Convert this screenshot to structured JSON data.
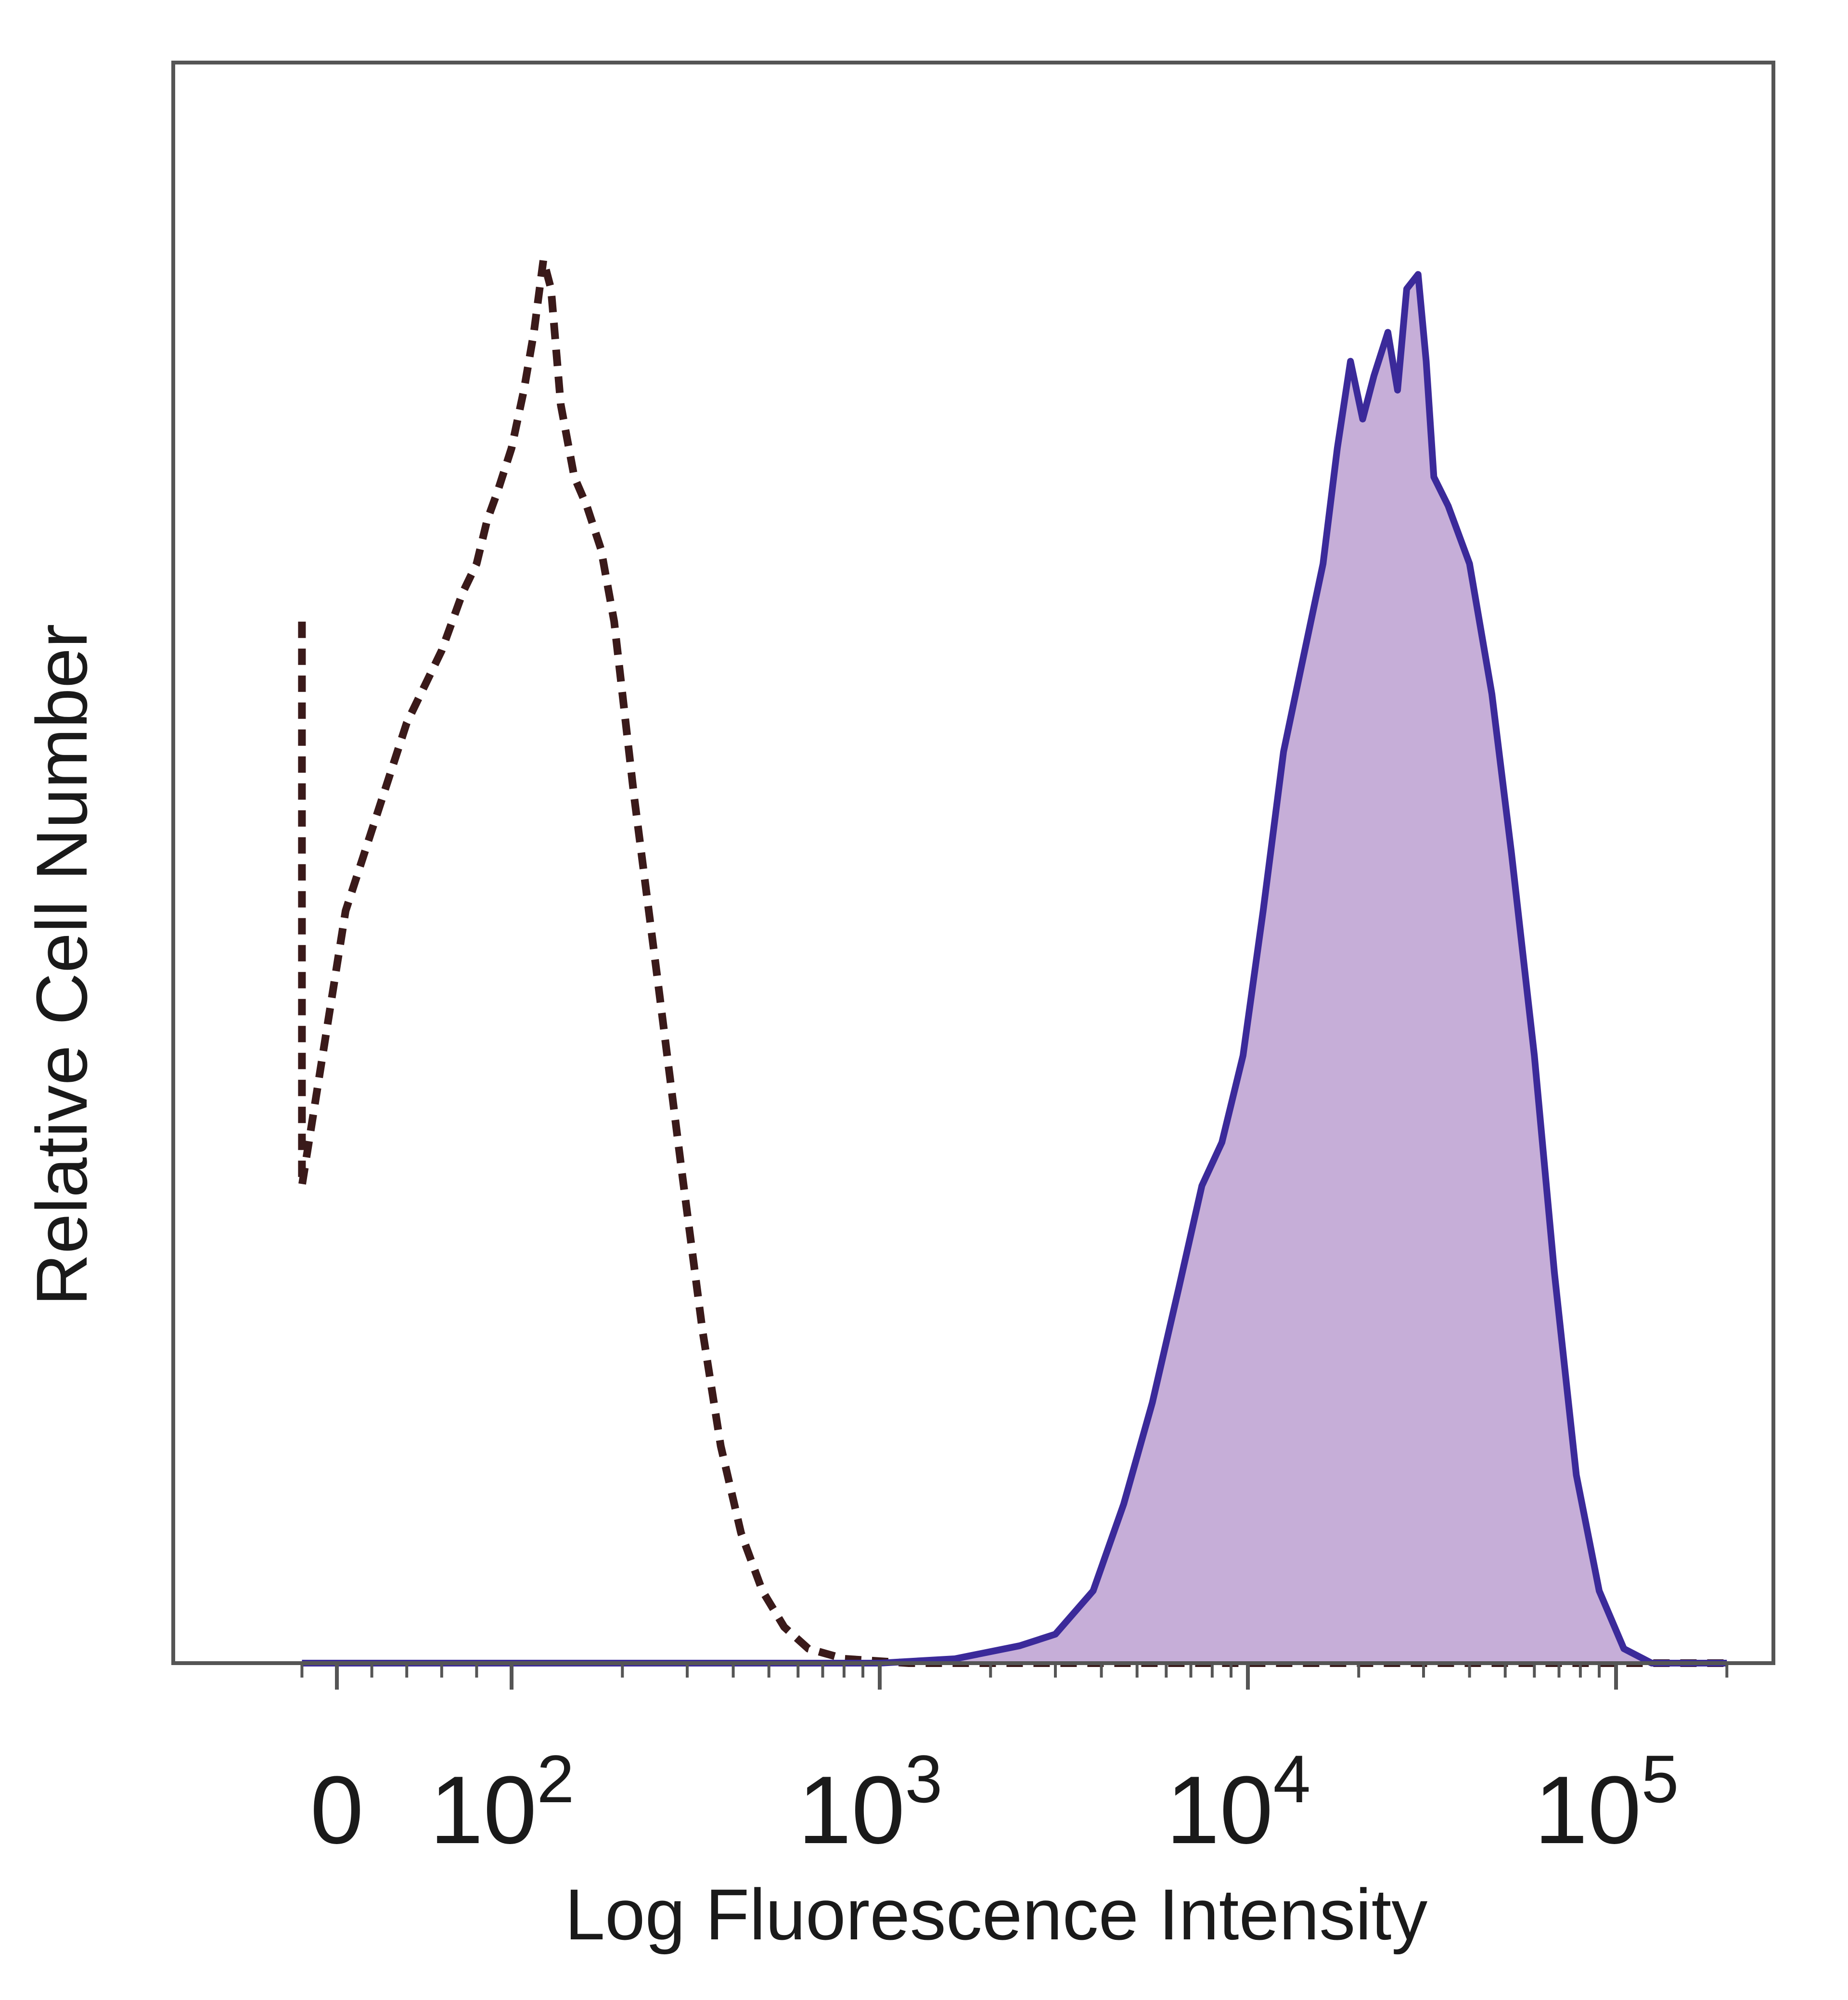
{
  "chart_data": {
    "type": "area",
    "xlabel": "Log Fluorescence Intensity",
    "ylabel": "Relative Cell Number",
    "x_scale": "biexponential",
    "x_ticks": [
      {
        "value": 0,
        "label": "0"
      },
      {
        "value": 100,
        "base": "10",
        "exp": "2"
      },
      {
        "value": 1000,
        "base": "10",
        "exp": "3"
      },
      {
        "value": 10000,
        "base": "10",
        "exp": "4"
      },
      {
        "value": 100000,
        "base": "10",
        "exp": "5"
      }
    ],
    "grid": false,
    "legend": "none",
    "series": [
      {
        "style": "dashed-outline",
        "color": "#3a1a1a",
        "points": [
          [
            -30,
            0.72
          ],
          [
            -28,
            0.5
          ],
          [
            -20,
            0.33
          ],
          [
            5,
            0.52
          ],
          [
            40,
            0.65
          ],
          [
            60,
            0.7
          ],
          [
            72,
            0.74
          ],
          [
            80,
            0.76
          ],
          [
            86,
            0.79
          ],
          [
            92,
            0.81
          ],
          [
            100,
            0.84
          ],
          [
            108,
            0.88
          ],
          [
            115,
            0.92
          ],
          [
            122,
            0.97
          ],
          [
            128,
            0.95
          ],
          [
            136,
            0.87
          ],
          [
            148,
            0.82
          ],
          [
            160,
            0.8
          ],
          [
            175,
            0.77
          ],
          [
            190,
            0.72
          ],
          [
            215,
            0.6
          ],
          [
            250,
            0.47
          ],
          [
            290,
            0.34
          ],
          [
            330,
            0.23
          ],
          [
            370,
            0.15
          ],
          [
            420,
            0.09
          ],
          [
            480,
            0.05
          ],
          [
            550,
            0.025
          ],
          [
            640,
            0.01
          ],
          [
            800,
            0.003
          ],
          [
            1200,
            0.0
          ],
          [
            200000,
            0.0
          ]
        ]
      },
      {
        "style": "filled",
        "color": "#3b2a9a",
        "fill": "#c6aed8",
        "points": [
          [
            -30,
            0.0
          ],
          [
            1000,
            0.0
          ],
          [
            1600,
            0.003
          ],
          [
            2400,
            0.012
          ],
          [
            3000,
            0.02
          ],
          [
            3800,
            0.05
          ],
          [
            4600,
            0.11
          ],
          [
            5500,
            0.18
          ],
          [
            6500,
            0.26
          ],
          [
            7500,
            0.33
          ],
          [
            8500,
            0.36
          ],
          [
            9700,
            0.42
          ],
          [
            11000,
            0.52
          ],
          [
            12500,
            0.63
          ],
          [
            14000,
            0.69
          ],
          [
            16000,
            0.76
          ],
          [
            17500,
            0.84
          ],
          [
            19000,
            0.9
          ],
          [
            20500,
            0.86
          ],
          [
            22000,
            0.89
          ],
          [
            24000,
            0.92
          ],
          [
            25500,
            0.88
          ],
          [
            27000,
            0.95
          ],
          [
            29000,
            0.96
          ],
          [
            30500,
            0.9
          ],
          [
            32000,
            0.82
          ],
          [
            35000,
            0.8
          ],
          [
            40000,
            0.76
          ],
          [
            46000,
            0.67
          ],
          [
            52000,
            0.56
          ],
          [
            60000,
            0.42
          ],
          [
            68000,
            0.27
          ],
          [
            78000,
            0.13
          ],
          [
            90000,
            0.05
          ],
          [
            105000,
            0.01
          ],
          [
            125000,
            0.0
          ],
          [
            200000,
            0.0
          ]
        ]
      }
    ]
  }
}
